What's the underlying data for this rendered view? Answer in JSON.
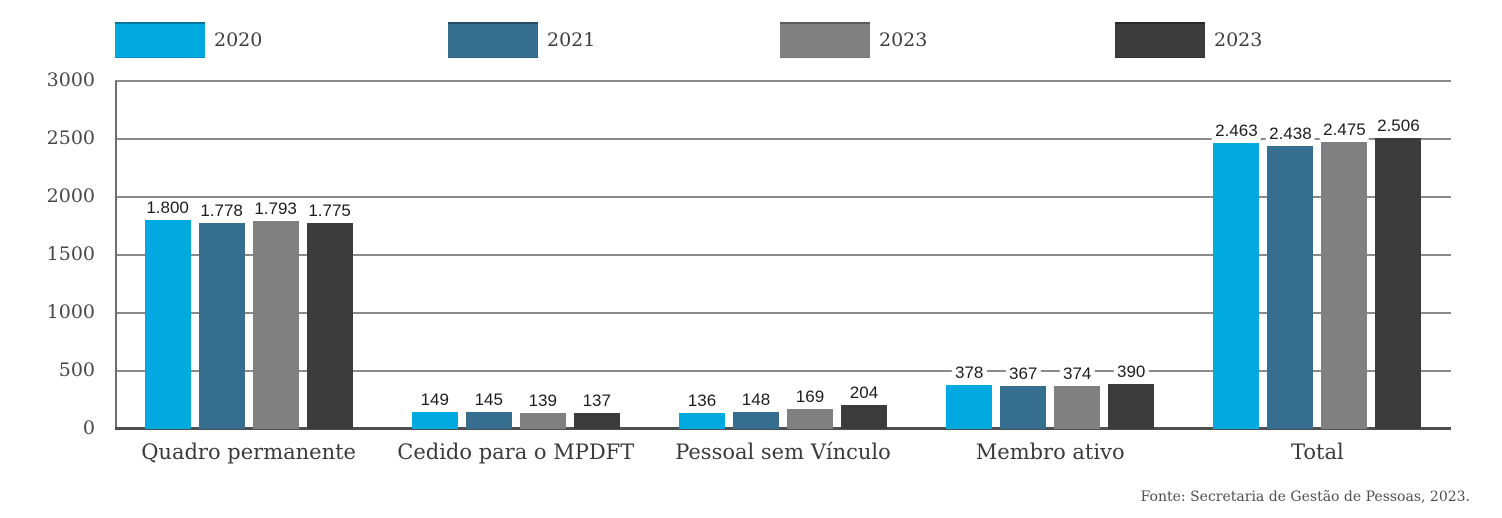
{
  "footer": {
    "source": "Fonte: Secretaria de Gestão de Pessoas, 2023."
  },
  "colors": {
    "series_2020": "#00A9E0",
    "series_2021": "#366E90",
    "series_2023a": "#808080",
    "series_2023b": "#3B3B3B",
    "gridline": "#8A8A8A",
    "axis": "#4F4F4F"
  },
  "chart_data": {
    "type": "bar",
    "title": "",
    "xlabel": "",
    "ylabel": "",
    "categories": [
      "Quadro permanente",
      "Cedido para o MPDFT",
      "Pessoal sem Vínculo",
      "Membro ativo",
      "Total"
    ],
    "series": [
      {
        "name": "2020",
        "color": "#00A9E0",
        "values": [
          1800,
          149,
          136,
          378,
          2463
        ],
        "labels": [
          "1.800",
          "149",
          "136",
          "378",
          "2.463"
        ]
      },
      {
        "name": "2021",
        "color": "#366E90",
        "values": [
          1778,
          145,
          148,
          367,
          2438
        ],
        "labels": [
          "1.778",
          "145",
          "148",
          "367",
          "2.438"
        ]
      },
      {
        "name": "2023",
        "color": "#808080",
        "values": [
          1793,
          139,
          169,
          374,
          2475
        ],
        "labels": [
          "1.793",
          "139",
          "169",
          "374",
          "2.475"
        ]
      },
      {
        "name": "2023",
        "color": "#3B3B3B",
        "values": [
          1775,
          137,
          204,
          390,
          2506
        ],
        "labels": [
          "1.775",
          "137",
          "204",
          "390",
          "2.506"
        ]
      }
    ],
    "ylim": [
      0,
      3000
    ],
    "yticks": [
      0,
      500,
      1000,
      1500,
      2000,
      2500,
      3000
    ],
    "grid": true,
    "legend_position": "top",
    "source_note": "Fonte: Secretaria de Gestão de Pessoas, 2023."
  }
}
